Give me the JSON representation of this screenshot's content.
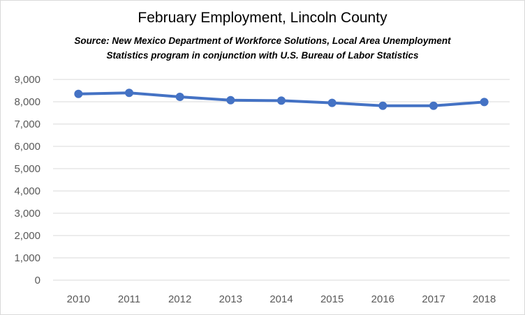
{
  "chart_data": {
    "type": "line",
    "title": "February Employment, Lincoln County",
    "subtitle_line1": "Source: New Mexico Department of Workforce Solutions, Local Area Unemployment",
    "subtitle_line2": "Statistics program in conjunction with U.S. Bureau of Labor Statistics",
    "categories": [
      "2010",
      "2011",
      "2012",
      "2013",
      "2014",
      "2015",
      "2016",
      "2017",
      "2018"
    ],
    "series": [
      {
        "name": "February Employment",
        "values": [
          8350,
          8400,
          8220,
          8070,
          8050,
          7950,
          7820,
          7820,
          7990
        ]
      }
    ],
    "ylim": [
      0,
      9000
    ],
    "yticks": [
      0,
      1000,
      2000,
      3000,
      4000,
      5000,
      6000,
      7000,
      8000,
      9000
    ],
    "ytick_labels": [
      "0",
      "1,000",
      "2,000",
      "3,000",
      "4,000",
      "5,000",
      "6,000",
      "7,000",
      "8,000",
      "9,000"
    ],
    "xlabel": "",
    "ylabel": "",
    "grid": true,
    "legend": "none",
    "colors": {
      "line": "#4472c4",
      "grid": "#d9d9d9",
      "tick_text": "#595959"
    }
  }
}
